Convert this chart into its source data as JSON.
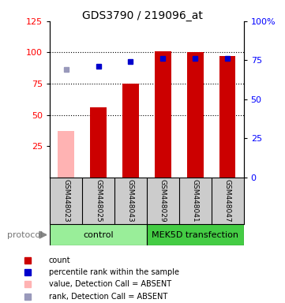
{
  "title": "GDS3790 / 219096_at",
  "samples": [
    "GSM448023",
    "GSM448025",
    "GSM448043",
    "GSM448029",
    "GSM448041",
    "GSM448047"
  ],
  "bar_values": [
    null,
    56,
    75,
    101,
    100,
    97
  ],
  "bar_absent_values": [
    37,
    null,
    null,
    null,
    null,
    null
  ],
  "bar_color": "#cc0000",
  "bar_absent_color": "#ffb3b3",
  "percentile_values": [
    null,
    71,
    74,
    76,
    76,
    76
  ],
  "percentile_absent_values": [
    69,
    null,
    null,
    null,
    null,
    null
  ],
  "percentile_color": "#0000cc",
  "percentile_absent_color": "#9999bb",
  "groups": [
    {
      "label": "control",
      "samples": [
        0,
        1,
        2
      ],
      "color": "#99ee99"
    },
    {
      "label": "MEK5D transfection",
      "samples": [
        3,
        4,
        5
      ],
      "color": "#44cc44"
    }
  ],
  "ylim_left": [
    0,
    125
  ],
  "ylim_right": [
    0,
    100
  ],
  "yticks_left": [
    25,
    50,
    75,
    100,
    125
  ],
  "yticks_right": [
    0,
    25,
    50,
    75,
    100
  ],
  "ytick_labels_right": [
    "0",
    "25",
    "50",
    "75",
    "100%"
  ],
  "hlines": [
    50,
    75,
    100
  ],
  "background_color": "#ffffff",
  "sample_box_color": "#cccccc",
  "protocol_label": "protocol",
  "legend_items": [
    {
      "color": "#cc0000",
      "label": "count"
    },
    {
      "color": "#0000cc",
      "label": "percentile rank within the sample"
    },
    {
      "color": "#ffb3b3",
      "label": "value, Detection Call = ABSENT"
    },
    {
      "color": "#9999bb",
      "label": "rank, Detection Call = ABSENT"
    }
  ]
}
